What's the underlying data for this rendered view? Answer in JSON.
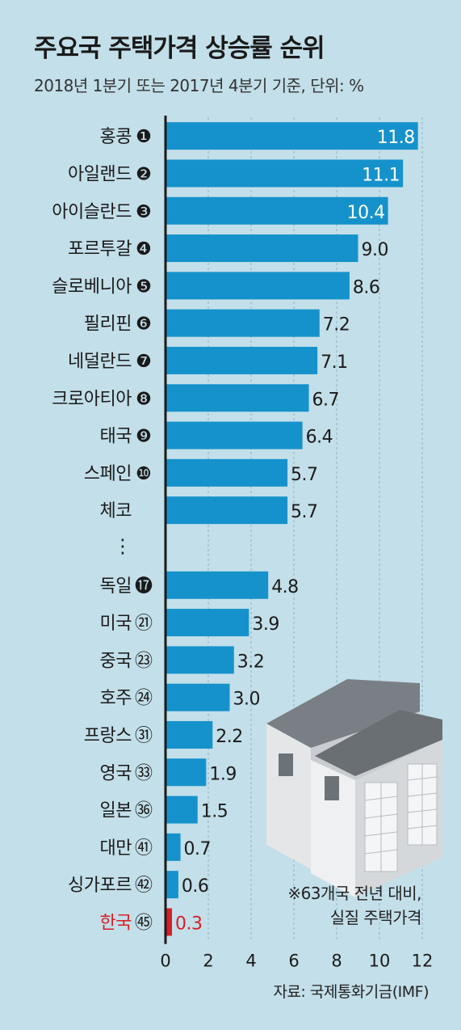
{
  "title": "주요국 주택가격 상승률 순위",
  "subtitle": "2018년 1분기 또는 2017년 4분기 기준, 단위: %",
  "note": [
    "※63개국 전년 대비,",
    "실질 주택가격"
  ],
  "source": "자료: 국제통화기금(IMF)",
  "colors": {
    "bar": "#1592cb",
    "highlight": "#d81f26",
    "axis": "#1a1a1a",
    "grid": "#8fb3c2"
  },
  "chart_data": {
    "type": "bar",
    "orientation": "horizontal",
    "title": "주요국 주택가격 상승률 순위",
    "subtitle": "2018년 1분기 또는 2017년 4분기 기준, 단위: %",
    "xlim": [
      0,
      12
    ],
    "xticks": [
      0,
      2,
      4,
      6,
      8,
      10,
      12
    ],
    "grid": "vertical dashed",
    "ellipsis_label": "⋮",
    "rows": [
      {
        "label": "홍콩",
        "rank": "❶",
        "value": 11.8,
        "value_label": "11.8"
      },
      {
        "label": "아일랜드",
        "rank": "❷",
        "value": 11.1,
        "value_label": "11.1"
      },
      {
        "label": "아이슬란드",
        "rank": "❸",
        "value": 10.4,
        "value_label": "10.4"
      },
      {
        "label": "포르투갈",
        "rank": "❹",
        "value": 9.0,
        "value_label": "9.0"
      },
      {
        "label": "슬로베니아",
        "rank": "❺",
        "value": 8.6,
        "value_label": "8.6"
      },
      {
        "label": "필리핀",
        "rank": "❻",
        "value": 7.2,
        "value_label": "7.2"
      },
      {
        "label": "네덜란드",
        "rank": "❼",
        "value": 7.1,
        "value_label": "7.1"
      },
      {
        "label": "크로아티아",
        "rank": "❽",
        "value": 6.7,
        "value_label": "6.7"
      },
      {
        "label": "태국",
        "rank": "❾",
        "value": 6.4,
        "value_label": "6.4"
      },
      {
        "label": "스페인",
        "rank": "❿",
        "value": 5.7,
        "value_label": "5.7"
      },
      {
        "label": "체코",
        "rank": "",
        "value": 5.7,
        "value_label": "5.7"
      },
      {
        "ellipsis": true
      },
      {
        "label": "독일",
        "rank": "⓱",
        "value": 4.8,
        "value_label": "4.8"
      },
      {
        "label": "미국",
        "rank": "㉑",
        "value": 3.9,
        "value_label": "3.9"
      },
      {
        "label": "중국",
        "rank": "㉓",
        "value": 3.2,
        "value_label": "3.2"
      },
      {
        "label": "호주",
        "rank": "㉔",
        "value": 3.0,
        "value_label": "3.0"
      },
      {
        "label": "프랑스",
        "rank": "㉛",
        "value": 2.2,
        "value_label": "2.2"
      },
      {
        "label": "영국",
        "rank": "㉝",
        "value": 1.9,
        "value_label": "1.9"
      },
      {
        "label": "일본",
        "rank": "㊱",
        "value": 1.5,
        "value_label": "1.5"
      },
      {
        "label": "대만",
        "rank": "㊶",
        "value": 0.7,
        "value_label": "0.7"
      },
      {
        "label": "싱가포르",
        "rank": "㊷",
        "value": 0.6,
        "value_label": "0.6"
      },
      {
        "label": "한국",
        "rank": "㊺",
        "value": 0.3,
        "value_label": "0.3",
        "highlight": true
      }
    ]
  }
}
